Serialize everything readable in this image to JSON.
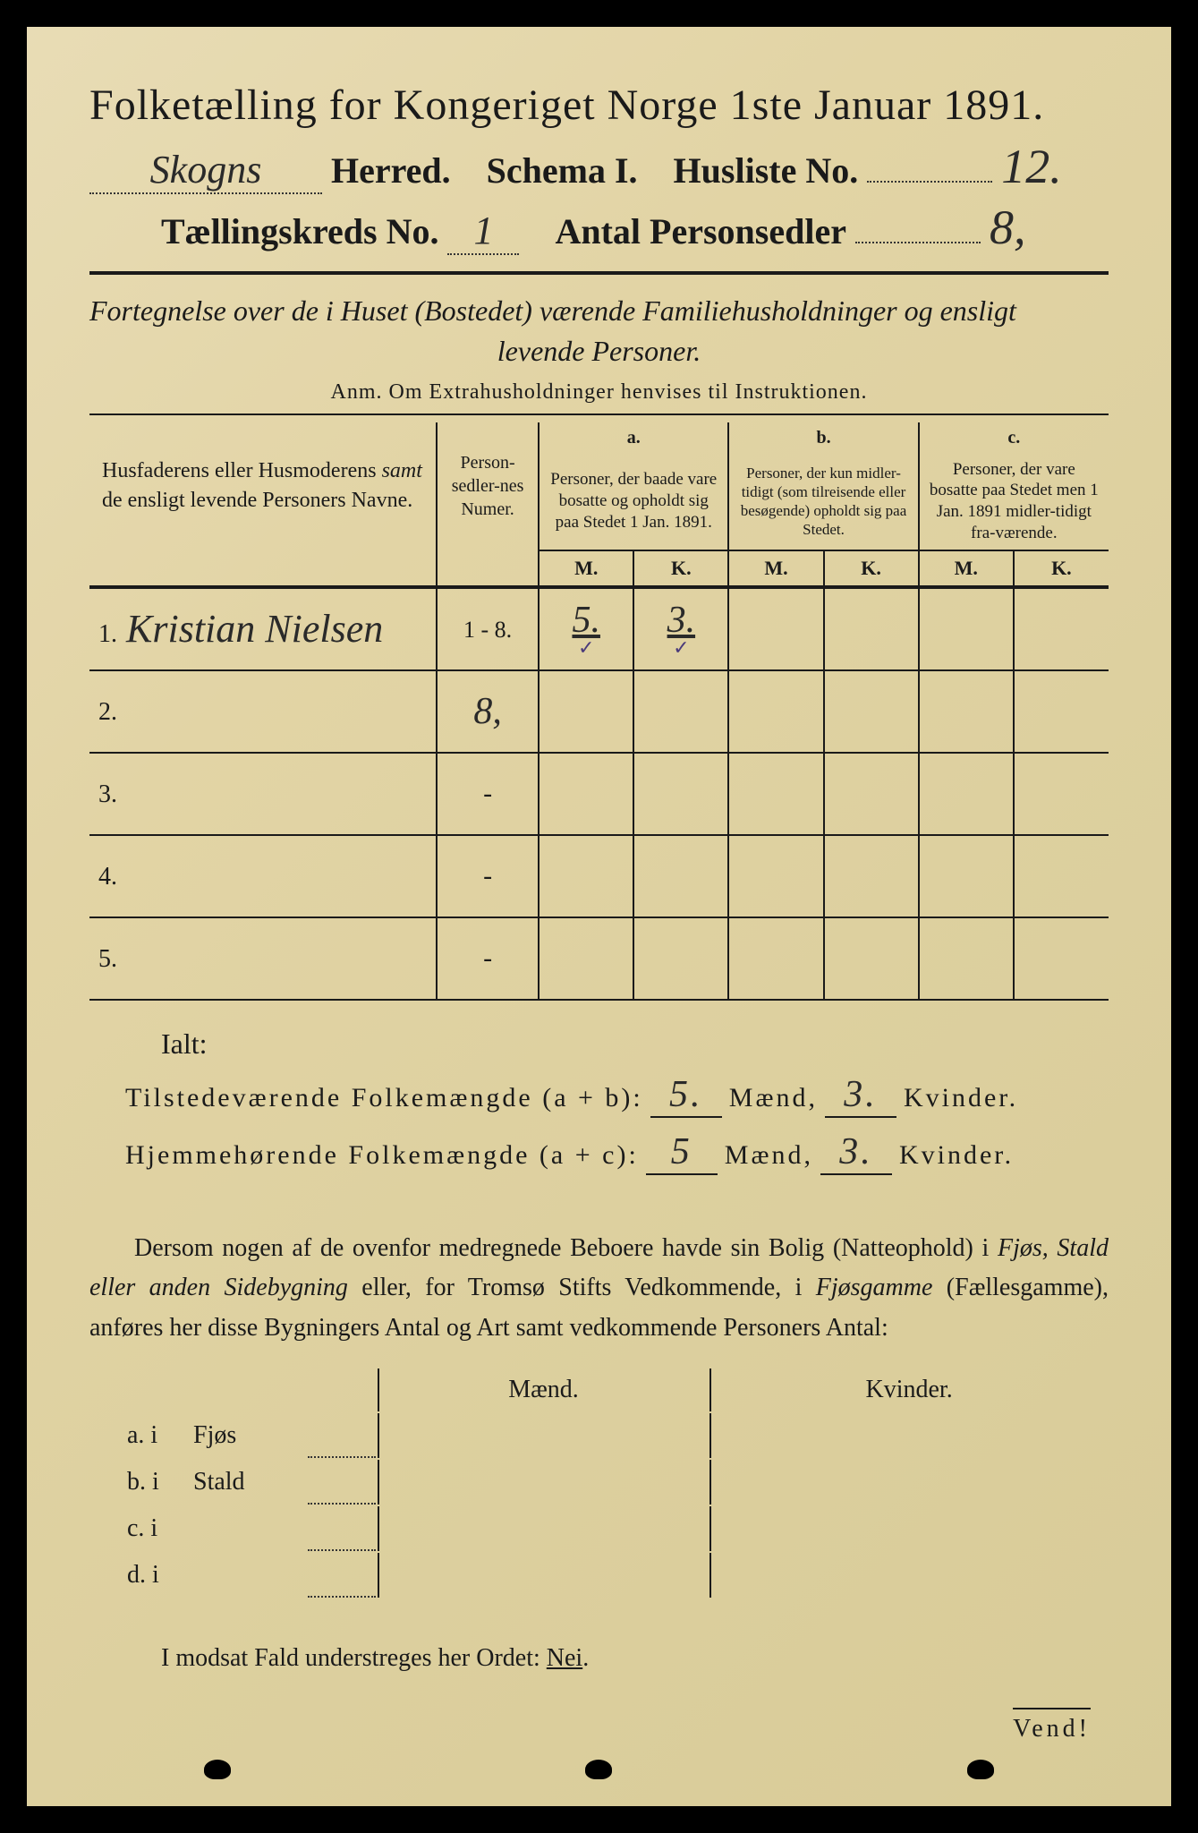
{
  "header": {
    "title": "Folketælling for Kongeriget Norge 1ste Januar 1891.",
    "herred_value": "Skogns",
    "herred_label": "Herred.",
    "schema_label": "Schema I.",
    "husliste_label": "Husliste No.",
    "husliste_value": "12.",
    "kreds_label": "Tællingskreds No.",
    "kreds_value": "1",
    "personsedler_label": "Antal Personsedler",
    "personsedler_value": "8,"
  },
  "fortegnelse": {
    "line1": "Fortegnelse over de i Huset (Bostedet) værende Familiehusholdninger og ensligt",
    "line2": "levende Personer.",
    "anm": "Anm. Om Extrahusholdninger henvises til Instruktionen."
  },
  "table": {
    "col_name": "Husfaderens eller Husmoderens samt de ensligt levende Personers Navne.",
    "col_numer": "Person-sedler-nes Numer.",
    "col_a_top": "a.",
    "col_a": "Personer, der baade vare bosatte og opholdt sig paa Stedet 1 Jan. 1891.",
    "col_b_top": "b.",
    "col_b": "Personer, der kun midler-tidigt (som tilreisende eller besøgende) opholdt sig paa Stedet.",
    "col_c_top": "c.",
    "col_c": "Personer, der vare bosatte paa Stedet men 1 Jan. 1891 midler-tidigt fra-værende.",
    "mk_m": "M.",
    "mk_k": "K.",
    "rows": [
      {
        "n": "1.",
        "name": "Kristian Nielsen",
        "numer": "1 - 8.",
        "a_m": "5.",
        "a_k": "3.",
        "b_m": "",
        "b_k": "",
        "c_m": "",
        "c_k": "",
        "check": true
      },
      {
        "n": "2.",
        "name": "",
        "numer": "8,",
        "a_m": "",
        "a_k": "",
        "b_m": "",
        "b_k": "",
        "c_m": "",
        "c_k": ""
      },
      {
        "n": "3.",
        "name": "",
        "numer": "-",
        "a_m": "",
        "a_k": "",
        "b_m": "",
        "b_k": "",
        "c_m": "",
        "c_k": ""
      },
      {
        "n": "4.",
        "name": "",
        "numer": "-",
        "a_m": "",
        "a_k": "",
        "b_m": "",
        "b_k": "",
        "c_m": "",
        "c_k": ""
      },
      {
        "n": "5.",
        "name": "",
        "numer": "-",
        "a_m": "",
        "a_k": "",
        "b_m": "",
        "b_k": "",
        "c_m": "",
        "c_k": ""
      }
    ]
  },
  "totals": {
    "ialt": "Ialt:",
    "tilstede_label": "Tilstedeværende Folkemængde (a + b):",
    "hjemme_label": "Hjemmehørende Folkemængde (a + c):",
    "maend": "Mænd,",
    "kvinder": "Kvinder.",
    "tilstede_m": "5.",
    "tilstede_k": "3.",
    "hjemme_m": "5",
    "hjemme_k": "3."
  },
  "dersom": {
    "text": "Dersom nogen af de ovenfor medregnede Beboere havde sin Bolig (Natteophold) i Fjøs, Stald eller anden Sidebygning eller, for Tromsø Stifts Vedkommende, i Fjøsgamme (Fællesgamme), anføres her disse Bygningers Antal og Art samt vedkommende Personers Antal:",
    "maend": "Mænd.",
    "kvinder": "Kvinder.",
    "rows": [
      {
        "lbl": "a.  i",
        "type": "Fjøs"
      },
      {
        "lbl": "b.  i",
        "type": "Stald"
      },
      {
        "lbl": "c.  i",
        "type": ""
      },
      {
        "lbl": "d.  i",
        "type": ""
      }
    ]
  },
  "modsat": "I modsat Fald understreges her Ordet: Nei.",
  "nei": "Nei",
  "vend": "Vend!"
}
